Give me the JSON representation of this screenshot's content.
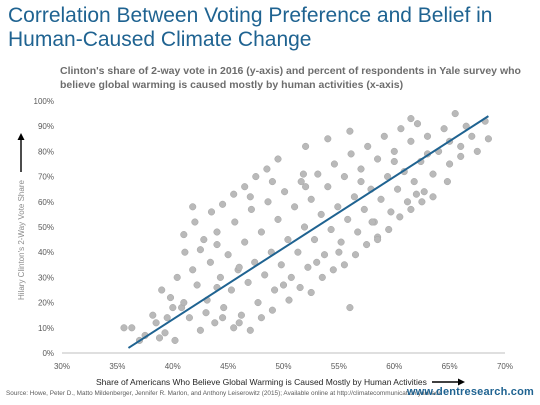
{
  "title": "Correlation Between Voting Preference and Belief in Human-Caused Climate Change",
  "subtitle": "Clinton's share of 2-way vote in 2016 (y-axis) and percent of respondents in Yale survey who believe global warming is caused mostly by human activities  (x-axis)",
  "footer": {
    "source": "Source: Howe, Peter D., Matto Mildenberger, Jennifer R. Marlon, and Anthony Leiserowitz (2015); Available online at http://climatecommunication.yale.edu",
    "site": "www.dentresearch.com"
  },
  "colors": {
    "title": "#1f6391",
    "points": "#b9b9b9",
    "trendline": "#1f6391",
    "axis_text": "#595959"
  },
  "chart_data": {
    "type": "scatter",
    "xlabel": "Share of Americans Who Believe Global Warming is Caused Mostly by Human Activities",
    "ylabel": "Hilary Clinton's 2-Way Vote Share",
    "xlim": [
      30,
      70
    ],
    "ylim": [
      0,
      100
    ],
    "x_ticks": [
      "30%",
      "35%",
      "40%",
      "45%",
      "50%",
      "55%",
      "60%",
      "65%",
      "70%"
    ],
    "y_ticks": [
      "0%",
      "10%",
      "20%",
      "30%",
      "40%",
      "50%",
      "60%",
      "70%",
      "80%",
      "90%",
      "100%"
    ],
    "grid": false,
    "trendline": {
      "x": [
        36,
        68.5
      ],
      "y": [
        2,
        94
      ]
    },
    "series": [
      {
        "points": [
          [
            35.6,
            10
          ],
          [
            36.3,
            10
          ],
          [
            37.0,
            5
          ],
          [
            37.5,
            7
          ],
          [
            38.2,
            15
          ],
          [
            38.5,
            12
          ],
          [
            39.0,
            25
          ],
          [
            39.3,
            8
          ],
          [
            39.8,
            22
          ],
          [
            40.2,
            5
          ],
          [
            40.4,
            30
          ],
          [
            40.8,
            18
          ],
          [
            41.1,
            40
          ],
          [
            41.5,
            14
          ],
          [
            41.8,
            33
          ],
          [
            42.2,
            27
          ],
          [
            42.5,
            9
          ],
          [
            42.8,
            45
          ],
          [
            43.1,
            21
          ],
          [
            43.4,
            36
          ],
          [
            43.8,
            12
          ],
          [
            44.0,
            48
          ],
          [
            44.3,
            30
          ],
          [
            44.6,
            18
          ],
          [
            45.0,
            39
          ],
          [
            45.3,
            25
          ],
          [
            45.6,
            52
          ],
          [
            45.9,
            33
          ],
          [
            46.2,
            15
          ],
          [
            46.5,
            44
          ],
          [
            46.8,
            28
          ],
          [
            47.1,
            57
          ],
          [
            47.4,
            36
          ],
          [
            47.7,
            20
          ],
          [
            48.0,
            48
          ],
          [
            48.3,
            31
          ],
          [
            48.6,
            60
          ],
          [
            48.9,
            40
          ],
          [
            49.2,
            25
          ],
          [
            49.5,
            53
          ],
          [
            49.8,
            35
          ],
          [
            50.1,
            64
          ],
          [
            50.4,
            45
          ],
          [
            50.7,
            30
          ],
          [
            51.0,
            58
          ],
          [
            51.3,
            40
          ],
          [
            51.6,
            68
          ],
          [
            51.9,
            50
          ],
          [
            52.2,
            34
          ],
          [
            52.5,
            61
          ],
          [
            52.8,
            45
          ],
          [
            53.1,
            71
          ],
          [
            53.4,
            55
          ],
          [
            53.7,
            39
          ],
          [
            54.0,
            66
          ],
          [
            54.3,
            49
          ],
          [
            54.6,
            75
          ],
          [
            54.9,
            58
          ],
          [
            55.2,
            44
          ],
          [
            55.5,
            70
          ],
          [
            55.8,
            53
          ],
          [
            56.1,
            79
          ],
          [
            56.4,
            62
          ],
          [
            56.7,
            48
          ],
          [
            57.0,
            73
          ],
          [
            57.3,
            57
          ],
          [
            57.6,
            82
          ],
          [
            57.9,
            65
          ],
          [
            58.2,
            52
          ],
          [
            58.5,
            77
          ],
          [
            58.8,
            61
          ],
          [
            59.1,
            86
          ],
          [
            59.4,
            70
          ],
          [
            59.7,
            56
          ],
          [
            60.0,
            80
          ],
          [
            60.3,
            65
          ],
          [
            60.6,
            89
          ],
          [
            60.9,
            72
          ],
          [
            61.2,
            60
          ],
          [
            61.5,
            84
          ],
          [
            61.8,
            68
          ],
          [
            62.1,
            91
          ],
          [
            62.4,
            76
          ],
          [
            62.7,
            64
          ],
          [
            63.0,
            86
          ],
          [
            63.5,
            71
          ],
          [
            64.0,
            80
          ],
          [
            64.5,
            89
          ],
          [
            65.0,
            75
          ],
          [
            65.5,
            95
          ],
          [
            66.0,
            82
          ],
          [
            66.5,
            90
          ],
          [
            67.0,
            86
          ],
          [
            67.5,
            80
          ],
          [
            68.2,
            92
          ],
          [
            68.5,
            85
          ],
          [
            64.8,
            68
          ],
          [
            40.0,
            18
          ],
          [
            41.0,
            20
          ],
          [
            43.0,
            16
          ],
          [
            44.5,
            14
          ],
          [
            45.5,
            10
          ],
          [
            46.0,
            12
          ],
          [
            47.0,
            9
          ],
          [
            48.0,
            14
          ],
          [
            49.0,
            17
          ],
          [
            50.5,
            21
          ],
          [
            51.5,
            26
          ],
          [
            52.5,
            24
          ],
          [
            53.5,
            30
          ],
          [
            54.5,
            33
          ],
          [
            55.5,
            35
          ],
          [
            56.5,
            39
          ],
          [
            57.5,
            43
          ],
          [
            58.5,
            46
          ],
          [
            59.5,
            49
          ],
          [
            60.5,
            54
          ],
          [
            61.5,
            57
          ],
          [
            62.5,
            60
          ],
          [
            63.5,
            62
          ],
          [
            42.0,
            52
          ],
          [
            43.5,
            56
          ],
          [
            44.5,
            59
          ],
          [
            45.5,
            63
          ],
          [
            46.5,
            66
          ],
          [
            47.5,
            70
          ],
          [
            48.5,
            73
          ],
          [
            49.5,
            77
          ],
          [
            41.0,
            47
          ],
          [
            42.5,
            41
          ],
          [
            44.0,
            43
          ],
          [
            47.0,
            62
          ],
          [
            49.0,
            68
          ],
          [
            52.0,
            82
          ],
          [
            54.0,
            85
          ],
          [
            56.0,
            88
          ],
          [
            41.8,
            58
          ],
          [
            51.8,
            71
          ],
          [
            61.5,
            93
          ],
          [
            62.0,
            63
          ],
          [
            58.0,
            52
          ],
          [
            55.0,
            40
          ],
          [
            53.0,
            36
          ],
          [
            50.0,
            27
          ],
          [
            56.0,
            18
          ],
          [
            58.5,
            45
          ],
          [
            46.0,
            34
          ],
          [
            44.0,
            26
          ],
          [
            39.5,
            14
          ],
          [
            38.8,
            6
          ],
          [
            52.0,
            66
          ],
          [
            60.0,
            76
          ],
          [
            57.0,
            68
          ],
          [
            63.0,
            79
          ],
          [
            65.0,
            84
          ],
          [
            66.0,
            78
          ]
        ]
      }
    ]
  }
}
